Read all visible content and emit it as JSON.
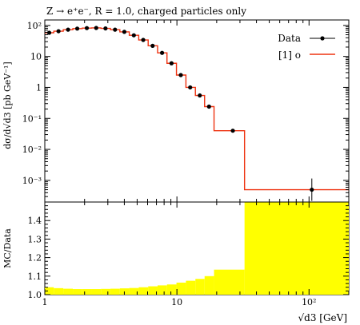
{
  "chart_data": [
    {
      "type": "line",
      "title": "Z → e⁺e⁻, R = 1.0, charged particles only",
      "ylabel": "dσ/d√d3 [pb GeV⁻¹]",
      "xlabel": "",
      "x_scale": "log",
      "y_scale": "log",
      "xlim": [
        1,
        200
      ],
      "ylim": [
        0.0002,
        150
      ],
      "x_tick_labels": [
        "1",
        "10",
        "10²"
      ],
      "y_tick_labels": [
        "10²",
        "10",
        "1",
        "10⁻¹",
        "10⁻²",
        "10⁻³"
      ],
      "y_tick_values": [
        100,
        10,
        1,
        0.1,
        0.01,
        0.001
      ],
      "legend_position": "top-right",
      "series": [
        {
          "name": "Data",
          "style": "points-with-errorbars",
          "color": "#000000",
          "x": [
            1.08,
            1.27,
            1.5,
            1.76,
            2.08,
            2.45,
            2.88,
            3.4,
            4.0,
            4.72,
            5.56,
            6.55,
            7.72,
            9.1,
            10.7,
            12.6,
            14.9,
            17.5,
            26.5,
            105
          ],
          "y": [
            58,
            65,
            73,
            79,
            82,
            83,
            80,
            73,
            62,
            48,
            34,
            22,
            13,
            6.0,
            2.5,
            1.0,
            0.55,
            0.24,
            0.04,
            0.0005
          ]
        },
        {
          "name": "[1] o",
          "style": "step",
          "color": "#ee3311",
          "bin_edges": [
            1.0,
            1.17,
            1.38,
            1.63,
            1.92,
            2.26,
            2.66,
            3.14,
            3.7,
            4.36,
            5.14,
            6.06,
            7.14,
            8.41,
            9.92,
            11.7,
            13.8,
            16.2,
            19.1,
            32.5,
            200
          ],
          "y": [
            58,
            65,
            73,
            79,
            82,
            83,
            80,
            73,
            62,
            48,
            34,
            22,
            13,
            6.0,
            2.5,
            1.0,
            0.55,
            0.24,
            0.04,
            0.0005
          ]
        }
      ]
    },
    {
      "type": "area",
      "ylabel": "MC/Data",
      "xlabel": "√d3 [GeV]",
      "x_scale": "log",
      "xlim": [
        1,
        200
      ],
      "ylim": [
        1.0,
        1.5
      ],
      "x_tick_labels": [
        "1",
        "10",
        "10²"
      ],
      "y_tick_labels": [
        "1.0",
        "1.1",
        "1.2",
        "1.3",
        "1.4"
      ],
      "y_tick_values": [
        1.0,
        1.1,
        1.2,
        1.3,
        1.4
      ],
      "band_color": "#ffff00",
      "series": [
        {
          "name": "",
          "style": "step-band",
          "bin_edges": [
            1.0,
            1.17,
            1.38,
            1.63,
            1.92,
            2.26,
            2.66,
            3.14,
            3.7,
            4.36,
            5.14,
            6.06,
            7.14,
            8.41,
            9.92,
            11.7,
            13.8,
            16.2,
            19.1,
            32.5,
            200
          ],
          "upper": [
            1.04,
            1.035,
            1.032,
            1.03,
            1.03,
            1.03,
            1.031,
            1.032,
            1.034,
            1.036,
            1.04,
            1.045,
            1.05,
            1.055,
            1.065,
            1.075,
            1.085,
            1.1,
            1.135,
            1.5
          ]
        }
      ]
    }
  ]
}
